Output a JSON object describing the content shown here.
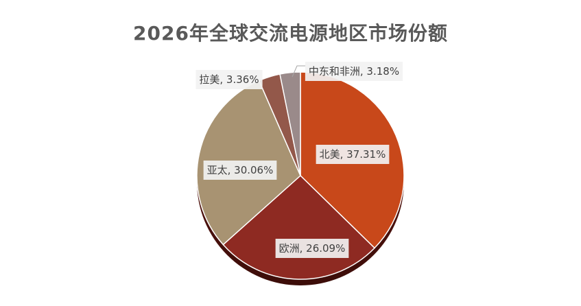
{
  "chart_data": {
    "type": "pie",
    "title": "2026年全球交流电源地区市场份额",
    "slices": [
      {
        "label": "北美",
        "value": 37.31,
        "display": "北美, 37.31%",
        "color": "#C8481A"
      },
      {
        "label": "欧洲",
        "value": 26.09,
        "display": "欧洲, 26.09%",
        "color": "#8E2A22"
      },
      {
        "label": "亚太",
        "value": 30.06,
        "display": "亚太, 30.06%",
        "color": "#A89372"
      },
      {
        "label": "拉美",
        "value": 3.36,
        "display": "拉美, 3.36%",
        "color": "#93584A"
      },
      {
        "label": "中东和非洲",
        "value": 3.18,
        "display": "中东和非洲, 3.18%",
        "color": "#9A8A8A"
      }
    ]
  }
}
